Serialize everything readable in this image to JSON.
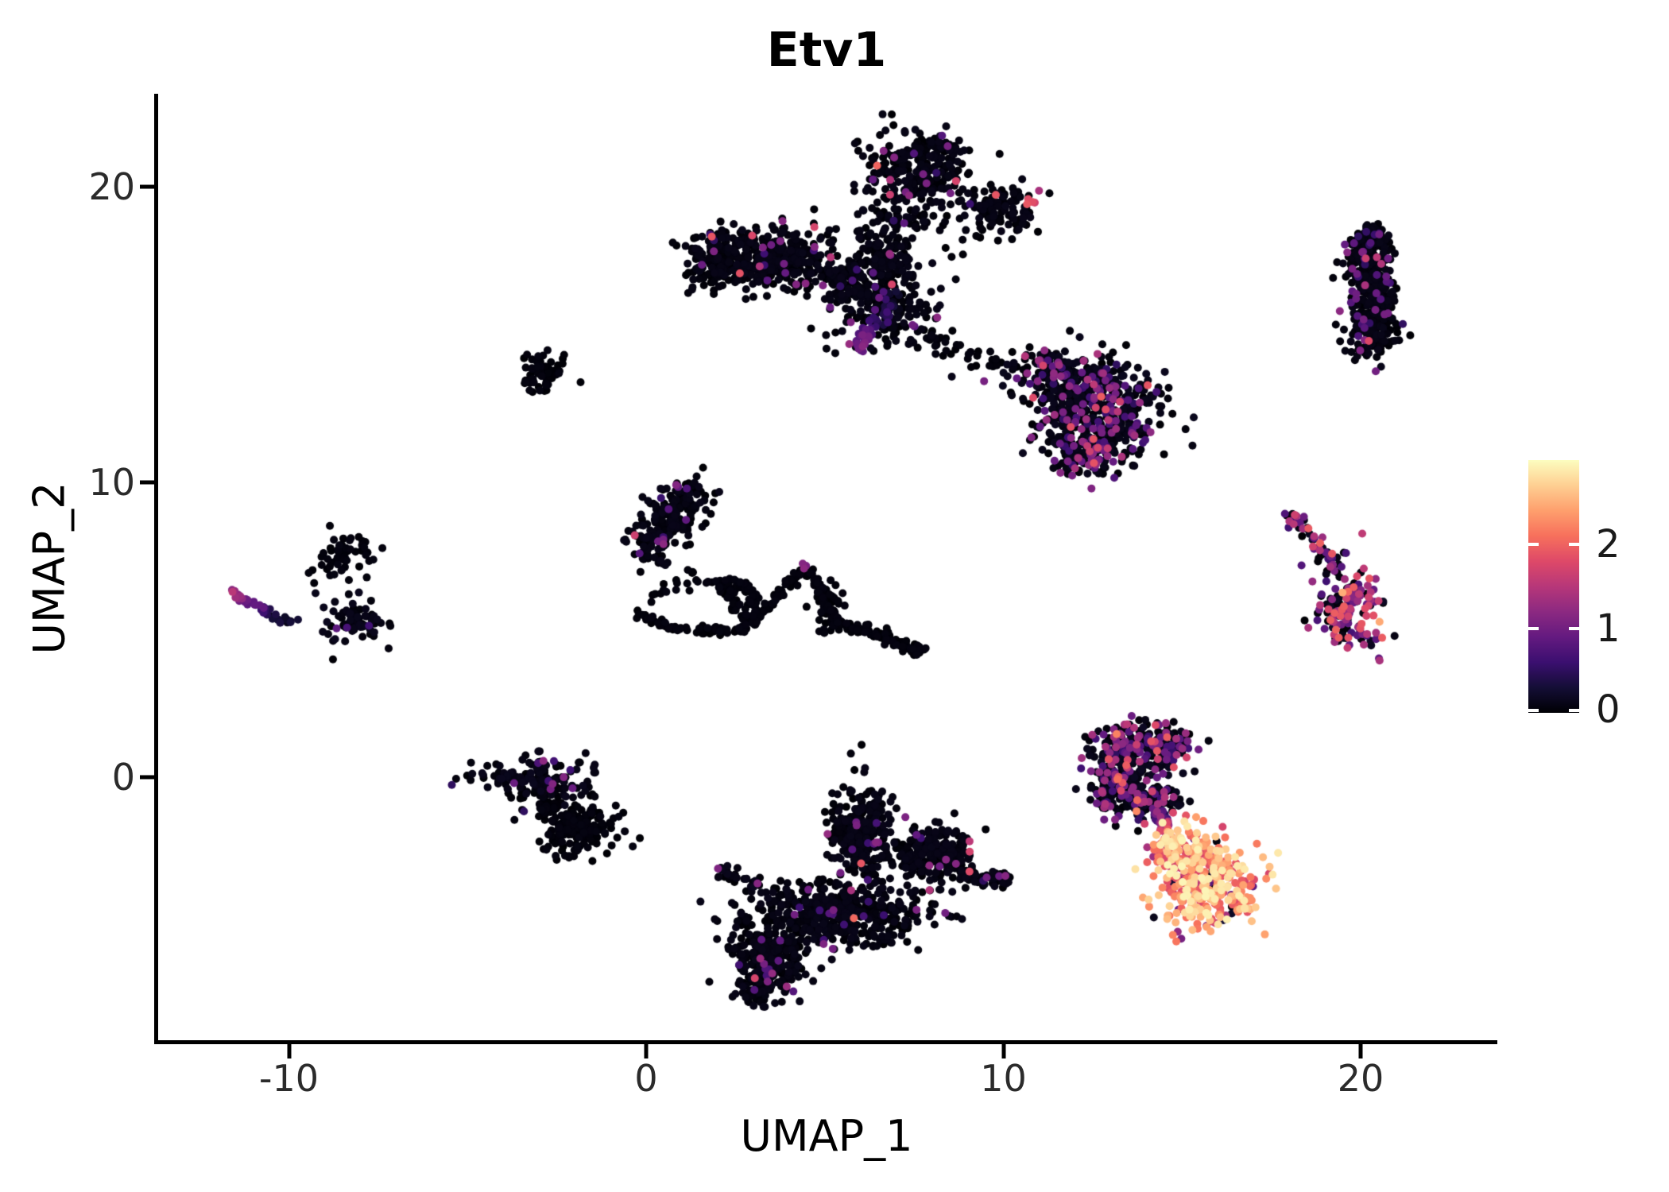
{
  "chart_data": {
    "type": "scatter",
    "title": "Etv1",
    "xlabel": "UMAP_1",
    "ylabel": "UMAP_2",
    "x_ticks": [
      -10,
      0,
      10,
      20
    ],
    "y_ticks": [
      0,
      10,
      20
    ],
    "xlim": [
      -13.7,
      23.8
    ],
    "ylim": [
      -9.0,
      23.1
    ],
    "grid": false,
    "background": "#ffffff",
    "point_radius": 5,
    "colorbar": {
      "position": "right",
      "ticks": [
        0,
        1,
        2
      ],
      "vmin": 0,
      "vmax": 3.0,
      "colormap": "magma",
      "stops": [
        [
          0.0,
          "#000004"
        ],
        [
          0.1,
          "#140e36"
        ],
        [
          0.2,
          "#3b0f70"
        ],
        [
          0.3,
          "#641a80"
        ],
        [
          0.4,
          "#8c2981"
        ],
        [
          0.5,
          "#b73779"
        ],
        [
          0.6,
          "#de4968"
        ],
        [
          0.7,
          "#f7705c"
        ],
        [
          0.8,
          "#fe9f6d"
        ],
        [
          0.9,
          "#fecf92"
        ],
        [
          1.0,
          "#fcfdbf"
        ]
      ]
    },
    "expr_profiles": {
      "black": [
        [
          0.955,
          0,
          0.12
        ],
        [
          0.035,
          0.5,
          1.3
        ],
        [
          0.01,
          1.3,
          2.1
        ]
      ],
      "pureblack": [
        [
          1.0,
          0,
          0.08
        ]
      ],
      "blackish2": [
        [
          0.93,
          0,
          0.15
        ],
        [
          0.07,
          0.5,
          1.4
        ]
      ],
      "tall": [
        [
          0.9,
          0,
          0.12
        ],
        [
          0.09,
          0.5,
          1.2
        ],
        [
          0.01,
          1.2,
          1.8
        ]
      ],
      "deltoid": [
        [
          0.75,
          0,
          0.15
        ],
        [
          0.2,
          0.5,
          1.35
        ],
        [
          0.05,
          1.35,
          2.0
        ]
      ],
      "midvert": [
        [
          0.95,
          0,
          0.12
        ],
        [
          0.04,
          0.5,
          1.2
        ],
        [
          0.01,
          1.5,
          2.2
        ]
      ],
      "mblob": [
        [
          0.88,
          0,
          0.15
        ],
        [
          0.12,
          0.6,
          1.3
        ]
      ],
      "brupper": [
        [
          0.7,
          0,
          0.18
        ],
        [
          0.24,
          0.5,
          1.45
        ],
        [
          0.06,
          1.45,
          2.3
        ]
      ],
      "hot": [
        [
          0.05,
          0,
          0.35
        ],
        [
          0.1,
          0.8,
          1.6
        ],
        [
          0.45,
          1.6,
          2.4
        ],
        [
          0.4,
          2.4,
          2.95
        ]
      ],
      "rstreak": [
        [
          0.45,
          0,
          0.2
        ],
        [
          0.4,
          0.6,
          1.4
        ],
        [
          0.15,
          1.4,
          2.0
        ]
      ],
      "rblob": [
        [
          0.42,
          0,
          0.2
        ],
        [
          0.36,
          0.6,
          1.4
        ],
        [
          0.2,
          1.4,
          2.0
        ],
        [
          0.02,
          2.0,
          2.6
        ]
      ],
      "pinkish": [
        [
          1.0,
          1.5,
          2.0
        ]
      ]
    },
    "clusters": [
      {
        "name": "topx-left-band",
        "kind": "blob",
        "cx": 3.5,
        "cy": 17.6,
        "sx": 1.05,
        "sy": 0.55,
        "n": 380,
        "expr": "black"
      },
      {
        "name": "topx-left-tip",
        "kind": "blob",
        "cx": 1.9,
        "cy": 17.4,
        "sx": 0.35,
        "sy": 0.45,
        "n": 90,
        "expr": "black"
      },
      {
        "name": "topx-top-lobe",
        "kind": "blob",
        "cx": 7.6,
        "cy": 20.3,
        "sx": 0.75,
        "sy": 0.85,
        "n": 300,
        "expr": "black"
      },
      {
        "name": "topx-top-cap",
        "kind": "blob",
        "cx": 8.3,
        "cy": 21.3,
        "sx": 0.3,
        "sy": 0.2,
        "n": 30,
        "expr": "black"
      },
      {
        "name": "topx-right-arm",
        "kind": "blob",
        "cx": 9.9,
        "cy": 19.2,
        "sx": 0.5,
        "sy": 0.45,
        "n": 110,
        "expr": "black"
      },
      {
        "name": "topx-arm-tip",
        "kind": "strand",
        "pts": [
          [
            10.7,
            19.6
          ],
          [
            10.85,
            19.45
          ]
        ],
        "w": 0.08,
        "n": 4,
        "expr": "pinkish"
      },
      {
        "name": "topx-body",
        "kind": "blob",
        "cx": 6.7,
        "cy": 15.8,
        "sx": 0.75,
        "sy": 0.6,
        "n": 170,
        "expr": "black"
      },
      {
        "name": "topx-body-link",
        "kind": "blob",
        "cx": 5.6,
        "cy": 16.8,
        "sx": 0.5,
        "sy": 0.4,
        "n": 80,
        "expr": "black"
      },
      {
        "name": "topx-upper-link",
        "kind": "blob",
        "cx": 6.7,
        "cy": 17.6,
        "sx": 0.5,
        "sy": 0.55,
        "n": 140,
        "expr": "black"
      },
      {
        "name": "topx-spike",
        "kind": "strand",
        "pts": [
          [
            7.0,
            16.3
          ],
          [
            6.3,
            15.2
          ],
          [
            5.9,
            14.5
          ]
        ],
        "w": 0.12,
        "n": 70,
        "grad": [
          0.0,
          1.1
        ]
      },
      {
        "name": "topx-trail",
        "kind": "strand",
        "pts": [
          [
            7.8,
            15.0
          ],
          [
            9.0,
            14.3
          ],
          [
            10.3,
            13.8
          ]
        ],
        "w": 0.25,
        "n": 35,
        "expr": "pureblack"
      },
      {
        "name": "deltoid-bridge",
        "kind": "strand",
        "pts": [
          [
            10.6,
            14.2
          ],
          [
            11.3,
            13.9
          ]
        ],
        "w": 0.2,
        "n": 25,
        "expr": "black"
      },
      {
        "name": "deltoid-upper",
        "kind": "blob",
        "cx": 11.7,
        "cy": 13.6,
        "sx": 0.8,
        "sy": 0.45,
        "n": 160,
        "expr": "deltoid"
      },
      {
        "name": "deltoid-main",
        "kind": "blob",
        "cx": 12.7,
        "cy": 12.3,
        "sx": 0.9,
        "sy": 0.8,
        "n": 420,
        "expr": "deltoid"
      },
      {
        "name": "deltoid-tail",
        "kind": "blob",
        "cx": 12.3,
        "cy": 10.9,
        "sx": 0.5,
        "sy": 0.4,
        "n": 130,
        "expr": "deltoid"
      },
      {
        "name": "topright-tall",
        "kind": "strand",
        "pts": [
          [
            20.35,
            18.2
          ],
          [
            20.05,
            17.3
          ],
          [
            20.5,
            16.2
          ],
          [
            20.3,
            15.0
          ],
          [
            20.2,
            14.45
          ]
        ],
        "w": 0.33,
        "n": 430,
        "expr": "tall"
      },
      {
        "name": "topright-cap",
        "kind": "blob",
        "cx": 20.3,
        "cy": 18.3,
        "sx": 0.3,
        "sy": 0.25,
        "n": 40,
        "expr": "tall"
      },
      {
        "name": "small-mid",
        "kind": "blob",
        "cx": -2.95,
        "cy": 13.6,
        "sx": 0.33,
        "sy": 0.42,
        "n": 55,
        "expr": "pureblack"
      },
      {
        "name": "midvert",
        "kind": "strand",
        "pts": [
          [
            1.3,
            9.6
          ],
          [
            0.6,
            8.7
          ],
          [
            0.15,
            7.6
          ]
        ],
        "w": 0.38,
        "n": 240,
        "expr": "midvert"
      },
      {
        "name": "web-loop-bottom",
        "kind": "strand",
        "pts": [
          [
            -0.3,
            5.55
          ],
          [
            0.7,
            5.05
          ],
          [
            1.8,
            4.95
          ],
          [
            2.8,
            5.05
          ]
        ],
        "w": 0.07,
        "n": 70,
        "expr": "pureblack"
      },
      {
        "name": "web-loop-top",
        "kind": "strand",
        "pts": [
          [
            -0.3,
            5.7
          ],
          [
            0.6,
            6.35
          ],
          [
            1.6,
            6.6
          ],
          [
            2.1,
            6.55
          ]
        ],
        "w": 0.1,
        "n": 22,
        "expr": "pureblack"
      },
      {
        "name": "web-edge-1",
        "kind": "strand",
        "pts": [
          [
            2.1,
            6.6
          ],
          [
            2.9,
            5.1
          ]
        ],
        "w": 0.1,
        "n": 30,
        "expr": "pureblack"
      },
      {
        "name": "web-edge-2",
        "kind": "strand",
        "pts": [
          [
            2.9,
            6.5
          ],
          [
            3.1,
            5.1
          ]
        ],
        "w": 0.12,
        "n": 45,
        "expr": "pureblack"
      },
      {
        "name": "web-edge-top",
        "kind": "strand",
        "pts": [
          [
            2.2,
            6.6
          ],
          [
            3.0,
            6.4
          ]
        ],
        "w": 0.1,
        "n": 25,
        "expr": "pureblack"
      },
      {
        "name": "mountain-left",
        "kind": "strand",
        "pts": [
          [
            3.3,
            5.6
          ],
          [
            3.9,
            6.4
          ],
          [
            4.4,
            7.1
          ]
        ],
        "w": 0.09,
        "n": 45,
        "expr": "pureblack"
      },
      {
        "name": "mountain-right",
        "kind": "strand",
        "pts": [
          [
            4.45,
            7.1
          ],
          [
            4.9,
            6.3
          ],
          [
            5.3,
            5.5
          ],
          [
            5.35,
            5.15
          ]
        ],
        "w": 0.1,
        "n": 55,
        "expr": "pureblack"
      },
      {
        "name": "mountain-peak",
        "kind": "strand",
        "pts": [
          [
            4.4,
            7.2
          ],
          [
            4.52,
            7.12
          ]
        ],
        "w": 0.05,
        "n": 3,
        "grad": [
          0.9,
          1.3
        ]
      },
      {
        "name": "mountain-base",
        "kind": "blob",
        "cx": 5.05,
        "cy": 5.6,
        "sx": 0.25,
        "sy": 0.35,
        "n": 45,
        "expr": "pureblack"
      },
      {
        "name": "web-tail",
        "kind": "strand",
        "pts": [
          [
            5.4,
            5.2
          ],
          [
            6.3,
            4.95
          ],
          [
            7.0,
            4.6
          ],
          [
            7.65,
            4.25
          ]
        ],
        "w": 0.09,
        "n": 70,
        "expr": "pureblack"
      },
      {
        "name": "web-tail-end",
        "kind": "blob",
        "cx": 7.6,
        "cy": 4.3,
        "sx": 0.12,
        "sy": 0.1,
        "n": 15,
        "expr": "pureblack"
      },
      {
        "name": "web-stray",
        "kind": "strand",
        "pts": [
          [
            1.2,
            7.0
          ],
          [
            1.35,
            6.95
          ]
        ],
        "w": 0.05,
        "n": 3,
        "expr": "pureblack"
      },
      {
        "name": "left-blob",
        "kind": "blob",
        "cx": -8.5,
        "cy": 7.6,
        "sx": 0.38,
        "sy": 0.38,
        "n": 55,
        "expr": "pureblack"
      },
      {
        "name": "left-streak",
        "kind": "strand",
        "pts": [
          [
            -11.6,
            6.2
          ],
          [
            -10.7,
            5.7
          ],
          [
            -9.9,
            5.15
          ]
        ],
        "w": 0.1,
        "n": 40,
        "grad": [
          1.25,
          0.0
        ]
      },
      {
        "name": "left-streak-blob",
        "kind": "blob",
        "cx": -8.2,
        "cy": 5.3,
        "sx": 0.45,
        "sy": 0.45,
        "n": 75,
        "expr": "mblob"
      },
      {
        "name": "botleft-upper",
        "kind": "blob",
        "cx": -3.1,
        "cy": -0.1,
        "sx": 0.8,
        "sy": 0.35,
        "n": 150,
        "expr": "blackish2"
      },
      {
        "name": "botleft-link",
        "kind": "strand",
        "pts": [
          [
            -3.0,
            -0.6
          ],
          [
            -2.6,
            -1.2
          ]
        ],
        "w": 0.15,
        "n": 25,
        "expr": "pureblack"
      },
      {
        "name": "botleft-lower",
        "kind": "blob",
        "cx": -1.95,
        "cy": -1.75,
        "sx": 0.55,
        "sy": 0.45,
        "n": 180,
        "expr": "pureblack"
      },
      {
        "name": "botcenter-toplobe",
        "kind": "blob",
        "cx": 6.0,
        "cy": -2.0,
        "sx": 0.42,
        "sy": 0.8,
        "n": 270,
        "expr": "black"
      },
      {
        "name": "botcenter-lobe-edge",
        "kind": "strand",
        "pts": [
          [
            5.3,
            -0.9
          ],
          [
            5.5,
            -2.2
          ]
        ],
        "w": 0.15,
        "n": 20,
        "expr": "pureblack"
      },
      {
        "name": "botcenter-rightupper",
        "kind": "blob",
        "cx": 8.0,
        "cy": -2.55,
        "sx": 0.6,
        "sy": 0.5,
        "n": 220,
        "expr": "black"
      },
      {
        "name": "botcenter-arm",
        "kind": "strand",
        "pts": [
          [
            8.7,
            -3.3
          ],
          [
            9.5,
            -3.45
          ],
          [
            9.95,
            -3.5
          ]
        ],
        "w": 0.12,
        "n": 50,
        "expr": "black"
      },
      {
        "name": "botcenter-arm-end",
        "kind": "blob",
        "cx": 9.9,
        "cy": -3.5,
        "sx": 0.18,
        "sy": 0.15,
        "n": 25,
        "expr": "black"
      },
      {
        "name": "botcenter-leftstreak",
        "kind": "strand",
        "pts": [
          [
            1.95,
            -3.1
          ],
          [
            2.7,
            -3.5
          ],
          [
            3.3,
            -3.7
          ]
        ],
        "w": 0.12,
        "n": 35,
        "expr": "blackish2"
      },
      {
        "name": "botcenter-main",
        "kind": "blob",
        "cx": 5.3,
        "cy": -4.7,
        "sx": 1.25,
        "sy": 0.55,
        "n": 480,
        "expr": "black"
      },
      {
        "name": "botcenter-lower",
        "kind": "blob",
        "cx": 3.4,
        "cy": -6.3,
        "sx": 0.5,
        "sy": 0.6,
        "n": 280,
        "expr": "black"
      },
      {
        "name": "botcenter-tip",
        "kind": "blob",
        "cx": 3.1,
        "cy": -7.2,
        "sx": 0.2,
        "sy": 0.2,
        "n": 30,
        "expr": "pureblack"
      },
      {
        "name": "botright-topband",
        "kind": "blob",
        "cx": 13.9,
        "cy": 1.2,
        "sx": 0.6,
        "sy": 0.35,
        "n": 150,
        "expr": "brupper"
      },
      {
        "name": "botright-leftarc",
        "kind": "blob",
        "cx": 13.1,
        "cy": 0.1,
        "sx": 0.35,
        "sy": 0.6,
        "n": 120,
        "expr": "brupper"
      },
      {
        "name": "botright-lowband",
        "kind": "blob",
        "cx": 13.9,
        "cy": -0.8,
        "sx": 0.6,
        "sy": 0.35,
        "n": 140,
        "expr": "brupper"
      },
      {
        "name": "botright-rightbit",
        "kind": "blob",
        "cx": 14.8,
        "cy": 1.0,
        "sx": 0.3,
        "sy": 0.35,
        "n": 45,
        "expr": "brupper"
      },
      {
        "name": "botright-center",
        "kind": "blob",
        "cx": 13.8,
        "cy": 0.2,
        "sx": 0.4,
        "sy": 0.4,
        "n": 40,
        "expr": "brupper"
      },
      {
        "name": "neck",
        "kind": "strand",
        "pts": [
          [
            14.35,
            -1.2
          ],
          [
            14.6,
            -1.9
          ]
        ],
        "w": 0.12,
        "n": 30,
        "grad": [
          0.4,
          2.0
        ]
      },
      {
        "name": "hot-upper",
        "kind": "blob",
        "cx": 14.95,
        "cy": -2.35,
        "sx": 0.4,
        "sy": 0.4,
        "n": 100,
        "expr": "hot"
      },
      {
        "name": "hot-main",
        "kind": "blob",
        "cx": 15.6,
        "cy": -3.7,
        "sx": 0.75,
        "sy": 0.7,
        "n": 300,
        "expr": "hot"
      },
      {
        "name": "hot-right-tip",
        "kind": "strand",
        "pts": [
          [
            16.6,
            -4.1
          ],
          [
            17.0,
            -4.35
          ]
        ],
        "w": 0.15,
        "n": 20,
        "expr": "hot"
      },
      {
        "name": "hot-topright",
        "kind": "blob",
        "cx": 15.9,
        "cy": -2.6,
        "sx": 0.3,
        "sy": 0.3,
        "n": 30,
        "expr": "hot"
      },
      {
        "name": "rightmid-streak",
        "kind": "strand",
        "pts": [
          [
            18.05,
            8.85
          ],
          [
            18.6,
            8.2
          ],
          [
            19.35,
            7.1
          ]
        ],
        "w": 0.12,
        "n": 55,
        "expr": "rstreak"
      },
      {
        "name": "rightmid-blob",
        "kind": "blob",
        "cx": 19.6,
        "cy": 5.85,
        "sx": 0.5,
        "sy": 0.8,
        "n": 150,
        "expr": "rblob"
      },
      {
        "name": "rightmid-below",
        "kind": "strand",
        "pts": [
          [
            19.4,
            4.9
          ],
          [
            19.6,
            4.6
          ]
        ],
        "w": 0.1,
        "n": 6,
        "expr": "rblob"
      }
    ]
  }
}
